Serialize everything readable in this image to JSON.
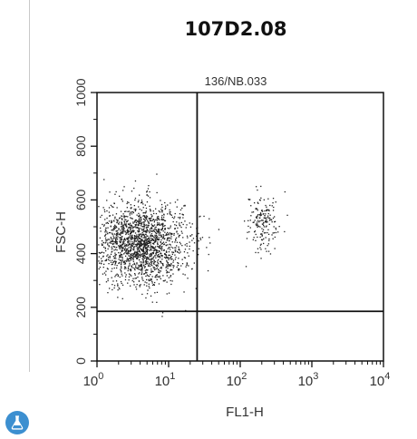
{
  "figure": {
    "title": "107D2.08",
    "logo_icon": "flask-icon",
    "accent_color": "#3c8fd0"
  },
  "chart_data": {
    "type": "scatter",
    "title": "136/NB.033",
    "xlabel": "FL1-H",
    "ylabel": "FSC-H",
    "x_scale": "log",
    "xlim": [
      1,
      10000
    ],
    "ylim": [
      0,
      1000
    ],
    "x_ticks": [
      {
        "base": "10",
        "exp": "0",
        "value": 1
      },
      {
        "base": "10",
        "exp": "1",
        "value": 10
      },
      {
        "base": "10",
        "exp": "2",
        "value": 100
      },
      {
        "base": "10",
        "exp": "3",
        "value": 1000
      },
      {
        "base": "10",
        "exp": "4",
        "value": 10000
      }
    ],
    "y_ticks": [
      {
        "label": "0",
        "value": 0
      },
      {
        "label": "200",
        "value": 200
      },
      {
        "label": "400",
        "value": 400
      },
      {
        "label": "600",
        "value": 600
      },
      {
        "label": "800",
        "value": 800
      },
      {
        "label": "1000",
        "value": 1000
      }
    ],
    "gate_lines": {
      "x": 25,
      "y": 185
    },
    "grid": false,
    "populations": [
      {
        "x_center": 4,
        "y_center": 440,
        "n_points": 1900,
        "spread_log_x": 0.32,
        "spread_y": 75
      },
      {
        "x_center": 200,
        "y_center": 520,
        "n_points": 180,
        "spread_log_x": 0.1,
        "spread_y": 55
      }
    ],
    "point_color": "#222222"
  }
}
